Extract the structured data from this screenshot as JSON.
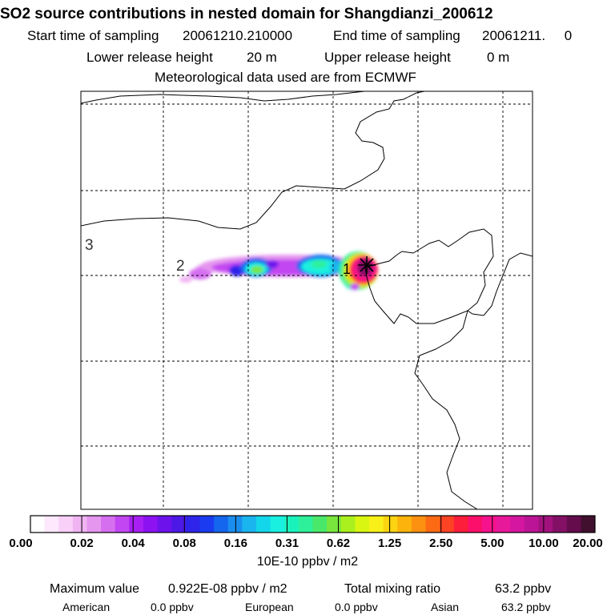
{
  "title": "SO2 source contributions in nested domain for Shangdianzi_200612",
  "sampling": {
    "start_label": "Start time of sampling",
    "start_value": "20061210.210000",
    "end_label": "End time of sampling",
    "end_value": "20061211.     0"
  },
  "release": {
    "lower_label": "Lower release height",
    "lower_value": "20 m",
    "upper_label": "Upper release height",
    "upper_value": "0 m"
  },
  "met_line": "Meteorological data used are from ECMWF",
  "map": {
    "region_labels": [
      "1",
      "2",
      "3"
    ],
    "station_marker_icon": "asterisk-icon"
  },
  "colorbar": {
    "colors": [
      "#ffffff",
      "#fde8fd",
      "#f8d0f8",
      "#f0b4f2",
      "#e596ee",
      "#d66ef0",
      "#c246f2",
      "#a81ff4",
      "#8c12f2",
      "#6e12ec",
      "#4c18e6",
      "#2e24ea",
      "#1a3cf0",
      "#1466ee",
      "#1a8eef",
      "#1ab4ef",
      "#14d6ea",
      "#1af0e0",
      "#1af2bc",
      "#2ff09a",
      "#4ae86a",
      "#78e63c",
      "#aaf01e",
      "#d8f612",
      "#f8f018",
      "#fcd412",
      "#fcb40c",
      "#fc9010",
      "#fc6a14",
      "#fc4424",
      "#fc1e3a",
      "#fc0f6a",
      "#f6128c",
      "#e8189a",
      "#d416a0",
      "#bc1496",
      "#a2127e",
      "#841066",
      "#640c4c",
      "#40102e"
    ],
    "labels": [
      "0.00",
      "0.02",
      "0.04",
      "0.08",
      "0.16",
      "0.31",
      "0.62",
      "1.25",
      "2.50",
      "5.00",
      "10.00",
      "20.00"
    ],
    "units": "10E-10 ppbv / m2"
  },
  "stats": {
    "max_label": "Maximum value",
    "max_value": "0.922E-08 ppbv / m2",
    "total_label": "Total mixing ratio",
    "total_value": "63.2 ppbv",
    "american_label": "American",
    "american_value": "0.0 ppbv",
    "european_label": "European",
    "european_value": "0.0 ppbv",
    "asian_label": "Asian",
    "asian_value": "63.2 ppbv"
  }
}
